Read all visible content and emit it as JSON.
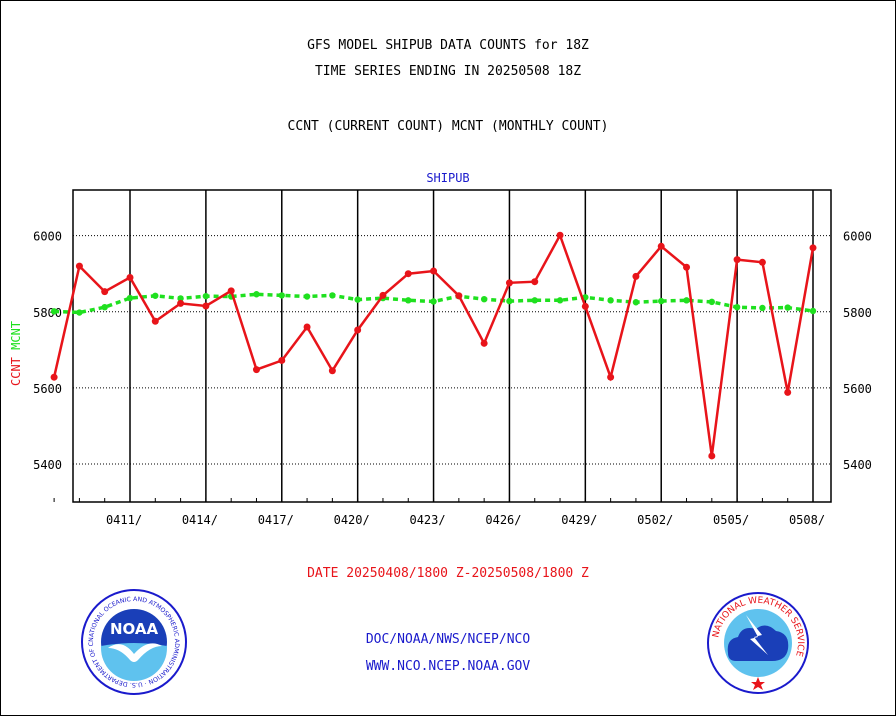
{
  "titles": {
    "line1": "GFS MODEL SHIPUB DATA COUNTS for 18Z",
    "line2": "TIME SERIES ENDING IN 20250508 18Z",
    "line3": "CCNT (CURRENT COUNT) MCNT (MONTHLY COUNT)"
  },
  "footer": {
    "date_range": "DATE 20250408/1800 Z-20250508/1800 Z",
    "credit_line1": "DOC/NOAA/NWS/NCEP/NCO",
    "credit_line2": "WWW.NCO.NCEP.NOAA.GOV"
  },
  "logos": {
    "noaa_text": "NOAA",
    "noaa_ring_text": "NATIONAL OCEANIC AND ATMOSPHERIC ADMINISTRATION · U.S. DEPARTMENT OF COMMERCE",
    "nws_ring_text": "NATIONAL WEATHER SERVICE"
  },
  "colors": {
    "ccnt": "#e8141a",
    "mcnt": "#1fe01f",
    "plot_label": "#1a1acc",
    "grid": "#000000"
  },
  "chart_data": {
    "type": "line",
    "plot_label": "SHIPUB",
    "ylabel_parts": [
      {
        "text": "CCNT",
        "color": "#e8141a"
      },
      {
        "text": "MCNT",
        "color": "#1fe01f"
      }
    ],
    "ylim": [
      5300,
      6120
    ],
    "yticks": [
      5400,
      5600,
      5800,
      6000
    ],
    "x_unit": "days from 04/08 18Z",
    "xlim": [
      0,
      30
    ],
    "xticks": [
      {
        "x": 3,
        "label": "0411/"
      },
      {
        "x": 6,
        "label": "0414/"
      },
      {
        "x": 9,
        "label": "0417/"
      },
      {
        "x": 12,
        "label": "0420/"
      },
      {
        "x": 15,
        "label": "0423/"
      },
      {
        "x": 18,
        "label": "0426/"
      },
      {
        "x": 21,
        "label": "0429/"
      },
      {
        "x": 24,
        "label": "0502/"
      },
      {
        "x": 27,
        "label": "0505/"
      },
      {
        "x": 30,
        "label": "0508/"
      }
    ],
    "grid": true,
    "series": [
      {
        "name": "CCNT",
        "color": "#e8141a",
        "style": "solid",
        "x": [
          0,
          1,
          2,
          3,
          4,
          5,
          6,
          7,
          8,
          9,
          10,
          11,
          12,
          13,
          14,
          15,
          16,
          17,
          18,
          19,
          20,
          21,
          22,
          23,
          24,
          25,
          26,
          27,
          28,
          29,
          30
        ],
        "values": [
          5628,
          5920,
          5853,
          5890,
          5775,
          5822,
          5815,
          5855,
          5648,
          5672,
          5760,
          5645,
          5752,
          5843,
          5900,
          5907,
          5842,
          5717,
          5876,
          5879,
          6001,
          5814,
          5628,
          5893,
          5972,
          5917,
          5421,
          5937,
          5930,
          5588,
          5968
        ]
      },
      {
        "name": "MCNT",
        "color": "#1fe01f",
        "style": "dashed",
        "x": [
          0,
          1,
          2,
          3,
          4,
          5,
          6,
          7,
          8,
          9,
          10,
          11,
          12,
          13,
          14,
          15,
          16,
          17,
          18,
          19,
          20,
          21,
          22,
          23,
          24,
          25,
          26,
          27,
          28,
          29,
          30
        ],
        "values": [
          5801,
          5798,
          5812,
          5836,
          5842,
          5835,
          5841,
          5840,
          5846,
          5843,
          5840,
          5843,
          5832,
          5836,
          5830,
          5827,
          5841,
          5833,
          5828,
          5830,
          5830,
          5838,
          5830,
          5825,
          5828,
          5830,
          5826,
          5812,
          5810,
          5811,
          5802
        ]
      }
    ]
  }
}
